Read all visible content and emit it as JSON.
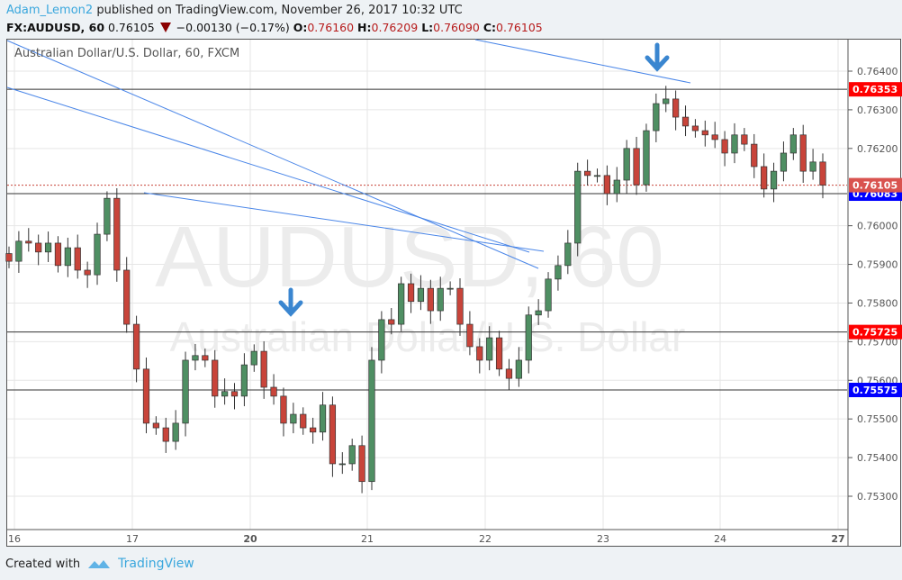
{
  "header": {
    "user": "Adam_Lemon2",
    "published_text": "published on TradingView.com, November 26, 2017 10:32 UTC",
    "symbol": "FX:AUDUSD, 60",
    "last": "0.76105",
    "change": "−0.00130 (−0.17%)",
    "o_label": "O:",
    "o": "0.76160",
    "h_label": "H:",
    "h": "0.76209",
    "l_label": "L:",
    "l": "0.76090",
    "c_label": "C:",
    "c": "0.76105"
  },
  "chart": {
    "subtitle": "Australian Dollar/U.S. Dollar, 60, FXCM",
    "watermark_symbol": "AUDUSD, 60",
    "watermark_name": "Australian Dollar/U.S. Dollar"
  },
  "chart_data": {
    "type": "candlestick",
    "interval": "60",
    "ylim": [
      0.7523,
      0.7646
    ],
    "y_ticks": [
      "0.76400",
      "0.76300",
      "0.76200",
      "0.76000",
      "0.75900",
      "0.75800",
      "0.75700",
      "0.75600",
      "0.75500",
      "0.75400",
      "0.75300"
    ],
    "x_ticks": [
      "16",
      "17",
      "20",
      "21",
      "22",
      "23",
      "24",
      "27"
    ],
    "closes": [
      0.75908,
      0.7596,
      0.75955,
      0.75932,
      0.75955,
      0.75897,
      0.75943,
      0.75885,
      0.75873,
      0.75978,
      0.76071,
      0.75885,
      0.75745,
      0.75629,
      0.75489,
      0.75477,
      0.75442,
      0.75489,
      0.75652,
      0.75664,
      0.75652,
      0.75559,
      0.75571,
      0.75559,
      0.7564,
      0.75675,
      0.75582,
      0.75559,
      0.75489,
      0.75512,
      0.75477,
      0.75466,
      0.75536,
      0.75384,
      0.75384,
      0.75431,
      0.75338,
      0.75652,
      0.75757,
      0.75745,
      0.7585,
      0.75804,
      0.75838,
      0.7578,
      0.75838,
      0.75838,
      0.75745,
      0.75687,
      0.75652,
      0.7571,
      0.75629,
      0.75605,
      0.75652,
      0.75769,
      0.7578,
      0.75862,
      0.75897,
      0.75955,
      0.76141,
      0.7613,
      0.7613,
      0.76083,
      0.76118,
      0.762,
      0.76106,
      0.76246,
      0.76316,
      0.76328,
      0.76281,
      0.76258,
      0.76246,
      0.76235,
      0.76223,
      0.76188,
      0.76235,
      0.76211,
      0.76153,
      0.76095,
      0.76141,
      0.76188,
      0.76235,
      0.76141,
      0.76165,
      0.76105
    ],
    "current_price": "0.76105",
    "horizontal_levels": [
      {
        "price": "0.76353",
        "color": "#ff0000"
      },
      {
        "price": "0.76083",
        "color": "#0000ff"
      },
      {
        "price": "0.75725",
        "color": "#ff0000"
      },
      {
        "price": "0.75575",
        "color": "#0000ff"
      }
    ],
    "colors": {
      "up": "#4f8f63",
      "down": "#c8443a",
      "trendline": "#4a86e8",
      "arrow": "#3a86d0"
    }
  },
  "footer": {
    "created_with": "Created with",
    "brand": "TradingView"
  }
}
